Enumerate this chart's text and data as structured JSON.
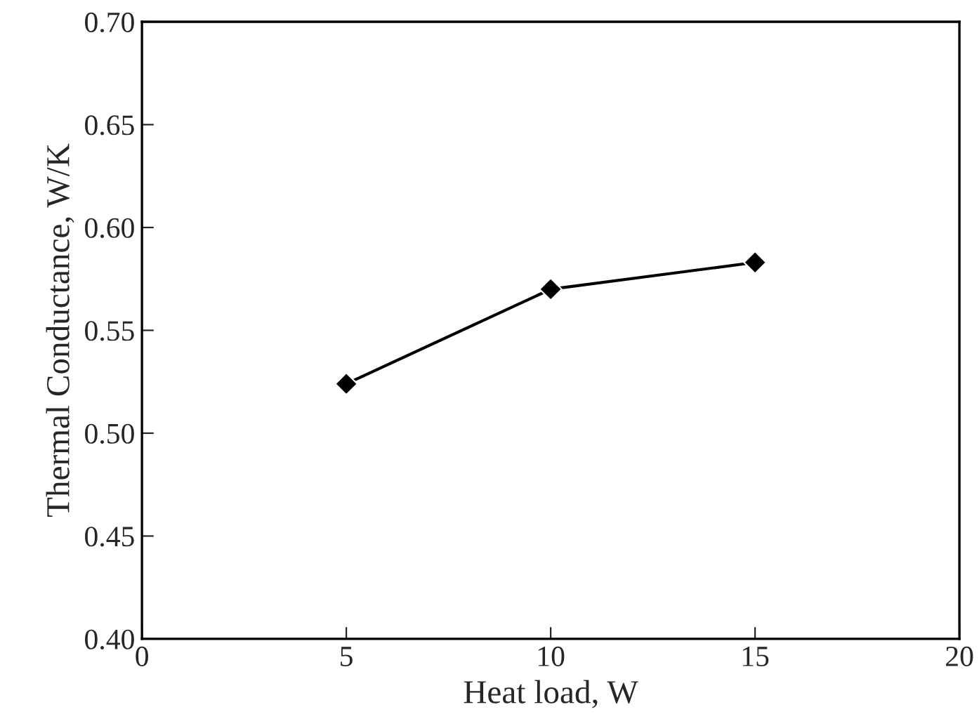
{
  "chart_data": {
    "type": "line",
    "xlabel": "Heat load, W",
    "ylabel": "Thermal Conductance, W/K",
    "x": [
      5,
      10,
      15
    ],
    "series": [
      {
        "color": "#000000",
        "values": [
          0.524,
          0.57,
          0.583
        ]
      }
    ],
    "xlim": [
      0,
      20
    ],
    "xticks": [
      0,
      5,
      10,
      15,
      20
    ],
    "ylim": [
      0.4,
      0.7
    ],
    "yticks": [
      {
        "value": 0.4,
        "label": "0.40"
      },
      {
        "value": 0.45,
        "label": "0.45"
      },
      {
        "value": 0.5,
        "label": "0.50"
      },
      {
        "value": 0.55,
        "label": "0.55"
      },
      {
        "value": 0.6,
        "label": "0.60"
      },
      {
        "value": 0.65,
        "label": "0.65"
      },
      {
        "value": 0.7,
        "label": "0.70"
      }
    ],
    "marker": "diamond",
    "line_style": "solid",
    "grid": false,
    "legend": false
  }
}
